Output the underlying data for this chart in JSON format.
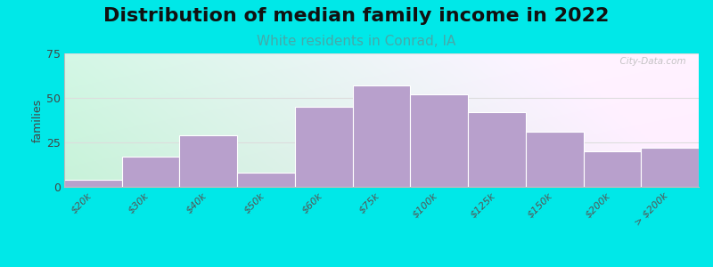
{
  "title": "Distribution of median family income in 2022",
  "subtitle": "White residents in Conrad, IA",
  "ylabel": "families",
  "categories": [
    "$20k",
    "$30k",
    "$40k",
    "$50k",
    "$60k",
    "$75k",
    "$100k",
    "$125k",
    "$150k",
    "$200k",
    "> $200k"
  ],
  "bar_heights": [
    4,
    17,
    29,
    8,
    45,
    57,
    52,
    42,
    31,
    20,
    22
  ],
  "bar_color": "#b8a0cc",
  "bg_outer": "#00e8e8",
  "plot_bg_left": "#c8eedd",
  "plot_bg_right": "#f0f0f0",
  "ylim": [
    0,
    75
  ],
  "yticks": [
    0,
    25,
    50,
    75
  ],
  "title_fontsize": 16,
  "subtitle_fontsize": 11,
  "subtitle_color": "#44aaaa",
  "watermark": "  City-Data.com"
}
